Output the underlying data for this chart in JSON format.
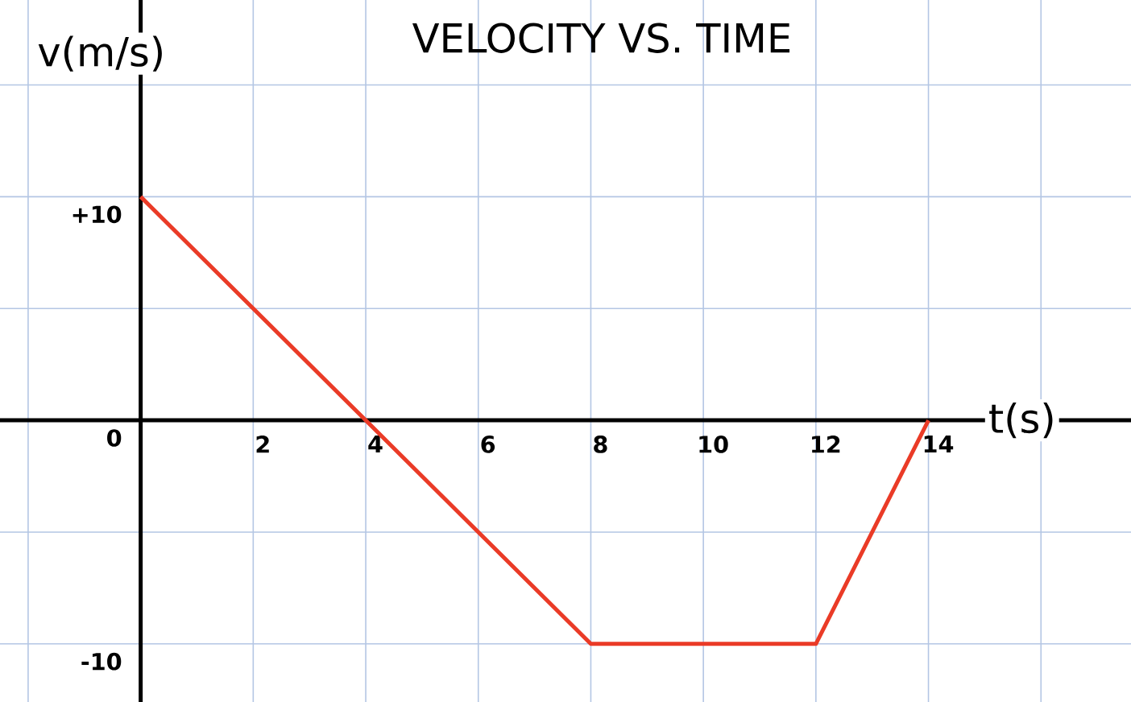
{
  "chart_data": {
    "type": "line",
    "title": "VELOCITY VS. TIME",
    "xlabel": "t(s)",
    "ylabel": "v(m/s)",
    "x": [
      0,
      8,
      12,
      14
    ],
    "values": [
      10,
      -10,
      -10,
      0
    ],
    "color": "#ea3b27",
    "xlim": [
      -2.5,
      17.6
    ],
    "ylim": [
      -12.6,
      18.8
    ],
    "xticks": [
      {
        "value": -2,
        "label": null
      },
      {
        "value": 0,
        "label": null
      },
      2,
      4,
      6,
      8,
      10,
      12,
      14,
      {
        "value": 16,
        "label": null
      }
    ],
    "yticks": [
      -10,
      {
        "value": -5,
        "label": null
      },
      0,
      {
        "value": 5,
        "label": null
      },
      {
        "value": 10,
        "label": "+10"
      },
      {
        "value": 15,
        "label": null
      }
    ],
    "grid": true
  }
}
